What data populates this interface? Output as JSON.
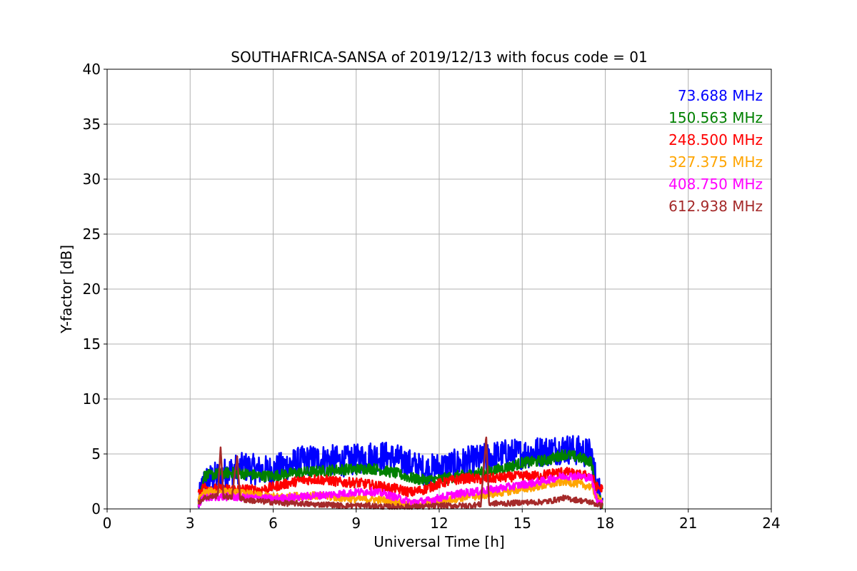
{
  "chart_data": {
    "type": "line",
    "title": "SOUTHAFRICA-SANSA of 2019/12/13 with focus code = 01",
    "xlabel": "Universal Time [h]",
    "ylabel": "Y-factor [dB]",
    "xlim": [
      0,
      24
    ],
    "ylim": [
      0,
      40
    ],
    "xticks": [
      0,
      3,
      6,
      9,
      12,
      15,
      18,
      21,
      24
    ],
    "yticks": [
      0,
      5,
      10,
      15,
      20,
      25,
      30,
      35,
      40
    ],
    "grid": true,
    "legend_position": "top-right",
    "series": [
      {
        "name": "73.688 MHz",
        "color": "#0000ff",
        "x": [
          3.3,
          3.5,
          4.0,
          4.5,
          5.0,
          5.5,
          6.0,
          6.5,
          7.0,
          7.5,
          8.0,
          8.5,
          9.0,
          9.5,
          10.0,
          10.5,
          11.0,
          11.5,
          12.0,
          12.5,
          13.0,
          13.5,
          14.0,
          14.5,
          15.0,
          15.5,
          16.0,
          16.5,
          17.0,
          17.5,
          17.7,
          17.9
        ],
        "y": [
          0.5,
          2.5,
          3.0,
          3.5,
          3.8,
          3.5,
          3.5,
          4.0,
          4.3,
          4.5,
          4.5,
          4.3,
          4.5,
          4.8,
          4.8,
          4.5,
          4.0,
          3.5,
          3.8,
          4.0,
          4.3,
          4.5,
          4.8,
          5.0,
          5.0,
          5.2,
          5.3,
          5.5,
          5.3,
          5.0,
          2.0,
          1.0
        ]
      },
      {
        "name": "150.563 MHz",
        "color": "#008000",
        "x": [
          3.3,
          3.5,
          4.0,
          4.5,
          5.0,
          5.5,
          6.0,
          6.5,
          7.0,
          7.5,
          8.0,
          8.5,
          9.0,
          9.5,
          10.0,
          10.5,
          11.0,
          11.5,
          12.0,
          12.5,
          13.0,
          13.5,
          14.0,
          14.5,
          15.0,
          15.5,
          16.0,
          16.5,
          17.0,
          17.5,
          17.7,
          17.9
        ],
        "y": [
          0.5,
          3.0,
          3.2,
          3.3,
          3.2,
          3.0,
          3.0,
          3.2,
          3.3,
          3.4,
          3.5,
          3.6,
          3.6,
          3.7,
          3.5,
          3.2,
          2.8,
          2.6,
          2.7,
          2.9,
          3.1,
          3.3,
          3.5,
          3.8,
          4.2,
          4.3,
          4.5,
          5.0,
          4.7,
          4.3,
          1.0,
          0.5
        ]
      },
      {
        "name": "248.500 MHz",
        "color": "#ff0000",
        "x": [
          3.3,
          3.5,
          4.0,
          4.5,
          5.0,
          5.5,
          6.0,
          6.5,
          7.0,
          7.5,
          8.0,
          8.5,
          9.0,
          9.5,
          10.0,
          10.5,
          11.0,
          11.5,
          12.0,
          12.5,
          13.0,
          13.5,
          14.0,
          14.5,
          15.0,
          15.5,
          16.0,
          16.5,
          17.0,
          17.5,
          17.7,
          17.9
        ],
        "y": [
          1.5,
          2.0,
          1.8,
          1.8,
          1.8,
          1.7,
          2.0,
          2.3,
          2.6,
          2.7,
          2.6,
          2.4,
          2.4,
          2.2,
          2.0,
          1.8,
          1.5,
          1.8,
          2.3,
          2.6,
          2.8,
          2.7,
          2.8,
          2.9,
          3.0,
          3.0,
          3.2,
          3.4,
          3.1,
          3.0,
          2.0,
          1.8
        ]
      },
      {
        "name": "327.375 MHz",
        "color": "#ffa500",
        "x": [
          3.3,
          3.5,
          4.0,
          4.5,
          5.0,
          5.5,
          6.0,
          6.5,
          7.0,
          7.5,
          8.0,
          8.5,
          9.0,
          9.5,
          10.0,
          10.5,
          11.0,
          11.5,
          12.0,
          12.5,
          13.0,
          13.5,
          14.0,
          14.5,
          15.0,
          15.5,
          16.0,
          16.5,
          17.0,
          17.5,
          17.7,
          17.9
        ],
        "y": [
          0.8,
          1.5,
          1.6,
          1.5,
          1.4,
          1.2,
          1.1,
          1.1,
          1.2,
          1.2,
          1.1,
          1.0,
          0.9,
          0.9,
          0.8,
          0.6,
          0.4,
          0.5,
          0.7,
          0.9,
          1.1,
          1.2,
          1.4,
          1.6,
          1.8,
          2.0,
          2.2,
          2.5,
          2.3,
          2.0,
          1.0,
          0.8
        ]
      },
      {
        "name": "408.750 MHz",
        "color": "#ff00ff",
        "x": [
          3.3,
          3.5,
          4.0,
          4.5,
          5.0,
          5.5,
          6.0,
          6.5,
          7.0,
          7.5,
          8.0,
          8.5,
          9.0,
          9.5,
          10.0,
          10.5,
          11.0,
          11.5,
          12.0,
          12.5,
          13.0,
          13.5,
          14.0,
          14.5,
          15.0,
          15.5,
          16.0,
          16.5,
          17.0,
          17.5,
          17.7,
          17.9
        ],
        "y": [
          0.3,
          1.0,
          1.1,
          1.1,
          1.0,
          1.0,
          0.9,
          1.0,
          1.1,
          1.2,
          1.3,
          1.4,
          1.5,
          1.6,
          1.4,
          1.0,
          0.6,
          0.7,
          1.0,
          1.3,
          1.5,
          1.6,
          1.8,
          2.0,
          2.2,
          2.4,
          2.7,
          3.0,
          3.0,
          2.8,
          0.8,
          0.5
        ]
      },
      {
        "name": "612.938 MHz",
        "color": "#a52a2a",
        "x": [
          3.3,
          3.5,
          4.0,
          4.1,
          4.2,
          4.5,
          4.7,
          4.8,
          5.0,
          5.5,
          6.0,
          6.5,
          7.0,
          7.5,
          8.0,
          8.5,
          9.0,
          9.5,
          10.0,
          10.5,
          11.0,
          11.5,
          12.0,
          12.5,
          13.0,
          13.5,
          13.7,
          13.8,
          14.0,
          14.5,
          15.0,
          15.5,
          16.0,
          16.5,
          17.0,
          17.5,
          17.7,
          17.9
        ],
        "y": [
          0.6,
          1.0,
          1.2,
          5.6,
          1.2,
          1.0,
          4.8,
          1.0,
          0.8,
          0.7,
          0.6,
          0.5,
          0.5,
          0.4,
          0.4,
          0.3,
          0.3,
          0.3,
          0.2,
          0.2,
          0.2,
          0.2,
          0.3,
          0.3,
          0.3,
          0.4,
          6.5,
          0.5,
          0.5,
          0.5,
          0.6,
          0.6,
          0.7,
          1.0,
          0.8,
          0.6,
          0.4,
          0.3
        ]
      }
    ]
  }
}
